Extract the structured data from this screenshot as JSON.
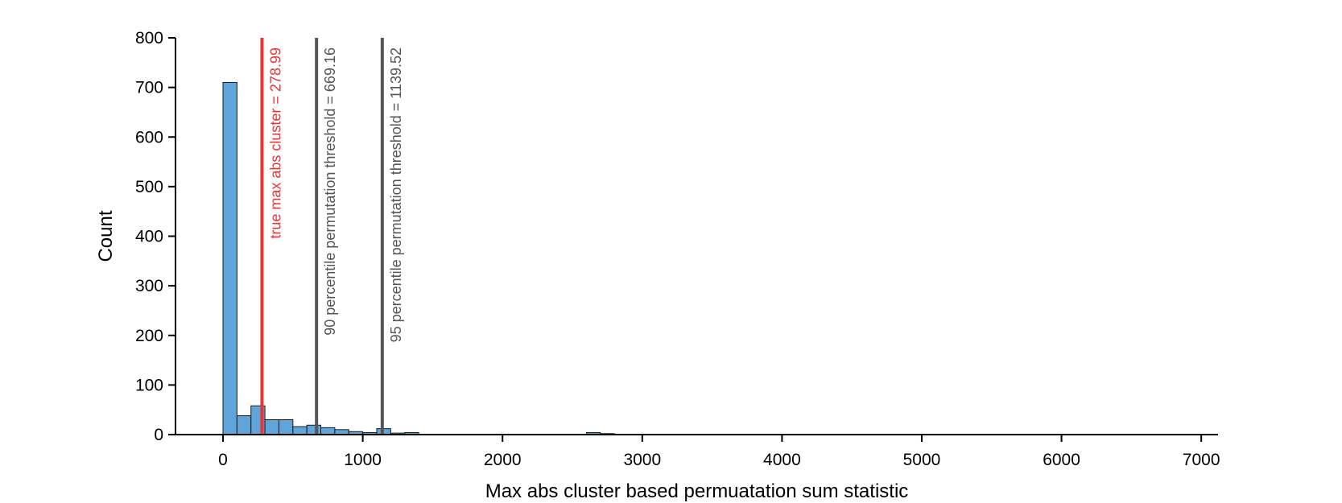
{
  "chart_data": {
    "type": "bar",
    "title": "",
    "xlabel": "Max abs cluster based permuatation sum statistic",
    "ylabel": "Count",
    "xlim": [
      -340,
      7120
    ],
    "ylim": [
      0,
      800
    ],
    "x_ticks": [
      0,
      1000,
      2000,
      3000,
      4000,
      5000,
      6000,
      7000
    ],
    "y_ticks": [
      0,
      100,
      200,
      300,
      400,
      500,
      600,
      700,
      800
    ],
    "grid": false,
    "bar_color": "#5fa5d9",
    "bin_width": 100,
    "bins": [
      {
        "x0": 0,
        "x1": 100,
        "count": 710
      },
      {
        "x0": 100,
        "x1": 200,
        "count": 38
      },
      {
        "x0": 200,
        "x1": 300,
        "count": 58
      },
      {
        "x0": 300,
        "x1": 400,
        "count": 30
      },
      {
        "x0": 400,
        "x1": 500,
        "count": 30
      },
      {
        "x0": 500,
        "x1": 600,
        "count": 16
      },
      {
        "x0": 600,
        "x1": 700,
        "count": 19
      },
      {
        "x0": 700,
        "x1": 800,
        "count": 14
      },
      {
        "x0": 800,
        "x1": 900,
        "count": 10
      },
      {
        "x0": 900,
        "x1": 1000,
        "count": 6
      },
      {
        "x0": 1000,
        "x1": 1100,
        "count": 4
      },
      {
        "x0": 1100,
        "x1": 1200,
        "count": 12
      },
      {
        "x0": 1200,
        "x1": 1300,
        "count": 3
      },
      {
        "x0": 1300,
        "x1": 1400,
        "count": 4
      },
      {
        "x0": 2600,
        "x1": 2700,
        "count": 4
      },
      {
        "x0": 2700,
        "x1": 2800,
        "count": 2
      }
    ],
    "vertical_lines": [
      {
        "x": 278.99,
        "label": "true max abs cluster = 278.99",
        "color": "#ee3333"
      },
      {
        "x": 669.16,
        "label": "90 percentile permutation threshold = 669.16",
        "color": "#555555"
      },
      {
        "x": 1139.52,
        "label": "95 percentile permutation threshold = 1139.52",
        "color": "#555555"
      }
    ]
  }
}
